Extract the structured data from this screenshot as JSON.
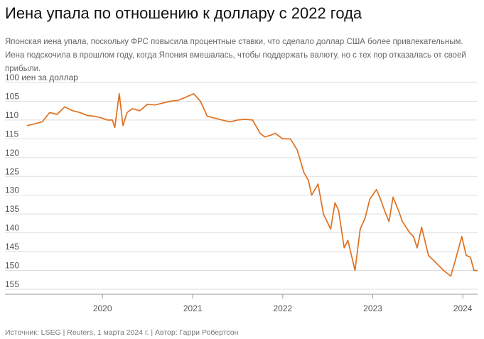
{
  "title": "Иена упала по отношению к доллару с 2022 года",
  "subtitle": "Японская иена упала, поскольку ФРС повысила процентные ставки, что сделало доллар США более привлекательным. Иена подскочила в прошлом году, когда Япония вмешалась, чтобы поддержать валюту, но с тех пор отказалась от своей прибыли.",
  "source": "Источник: LSEG | Reuters, 1 марта 2024 г. | Автор: Гарри Робертсон",
  "colors": {
    "line": "#e0701e",
    "grid": "#dddddd",
    "axis": "#999999"
  },
  "chart_data": {
    "type": "line",
    "ylabel": "100 иен за доллар",
    "y_reversed": true,
    "ylim": [
      100,
      155
    ],
    "yticks": [
      100,
      105,
      110,
      115,
      120,
      125,
      130,
      135,
      140,
      145,
      150,
      155
    ],
    "ytick_labels": [
      "100 иен за доллар",
      "105",
      "110",
      "115",
      "120",
      "125",
      "130",
      "135",
      "140",
      "145",
      "150",
      "155"
    ],
    "xlim": [
      "2019-03-01",
      "2024-03-01"
    ],
    "xticks": [
      "2020",
      "2021",
      "2022",
      "2023",
      "2024"
    ],
    "grid": true,
    "series": [
      {
        "x": [
          "2019-03-01",
          "2019-04-01",
          "2019-05-01",
          "2019-06-01",
          "2019-07-01",
          "2019-08-01",
          "2019-09-01",
          "2019-10-01",
          "2019-11-01",
          "2019-12-01",
          "2020-01-01",
          "2020-01-20",
          "2020-02-10",
          "2020-02-20",
          "2020-03-09",
          "2020-03-24",
          "2020-04-10",
          "2020-05-01",
          "2020-06-01",
          "2020-07-01",
          "2020-08-01",
          "2020-09-01",
          "2020-10-01",
          "2020-11-01",
          "2020-12-01",
          "2021-01-05",
          "2021-02-01",
          "2021-03-01",
          "2021-04-01",
          "2021-05-01",
          "2021-06-01",
          "2021-07-01",
          "2021-08-01",
          "2021-09-01",
          "2021-10-01",
          "2021-10-20",
          "2021-11-15",
          "2021-12-01",
          "2022-01-01",
          "2022-02-01",
          "2022-03-01",
          "2022-03-28",
          "2022-04-15",
          "2022-04-28",
          "2022-05-24",
          "2022-06-15",
          "2022-07-14",
          "2022-08-01",
          "2022-08-15",
          "2022-09-07",
          "2022-09-22",
          "2022-10-21",
          "2022-11-11",
          "2022-12-01",
          "2022-12-20",
          "2023-01-16",
          "2023-02-01",
          "2023-02-20",
          "2023-03-08",
          "2023-03-24",
          "2023-04-15",
          "2023-05-01",
          "2023-05-31",
          "2023-06-15",
          "2023-06-30",
          "2023-07-18",
          "2023-08-15",
          "2023-09-15",
          "2023-10-15",
          "2023-11-13",
          "2023-12-01",
          "2023-12-28",
          "2024-01-15",
          "2024-02-01",
          "2024-02-15",
          "2024-03-01"
        ],
        "y": [
          111.5,
          111.0,
          110.5,
          108.0,
          108.5,
          106.5,
          107.5,
          108.0,
          108.8,
          109.0,
          109.5,
          110.0,
          110.0,
          112.0,
          103.0,
          111.5,
          108.0,
          107.0,
          107.5,
          105.8,
          106.0,
          105.5,
          105.0,
          104.8,
          104.0,
          103.0,
          105.0,
          109.0,
          109.5,
          110.0,
          110.5,
          110.0,
          109.8,
          110.0,
          113.5,
          114.5,
          114.0,
          113.5,
          115.0,
          115.0,
          118.0,
          124.0,
          126.0,
          130.0,
          127.0,
          135.0,
          139.0,
          132.0,
          134.0,
          144.0,
          142.0,
          150.0,
          139.0,
          136.0,
          131.0,
          128.5,
          131.0,
          134.5,
          137.0,
          130.5,
          134.0,
          137.0,
          140.0,
          141.0,
          144.0,
          138.5,
          146.0,
          148.0,
          150.0,
          151.5,
          147.5,
          141.0,
          146.0,
          146.5,
          150.0,
          150.0
        ]
      }
    ]
  }
}
